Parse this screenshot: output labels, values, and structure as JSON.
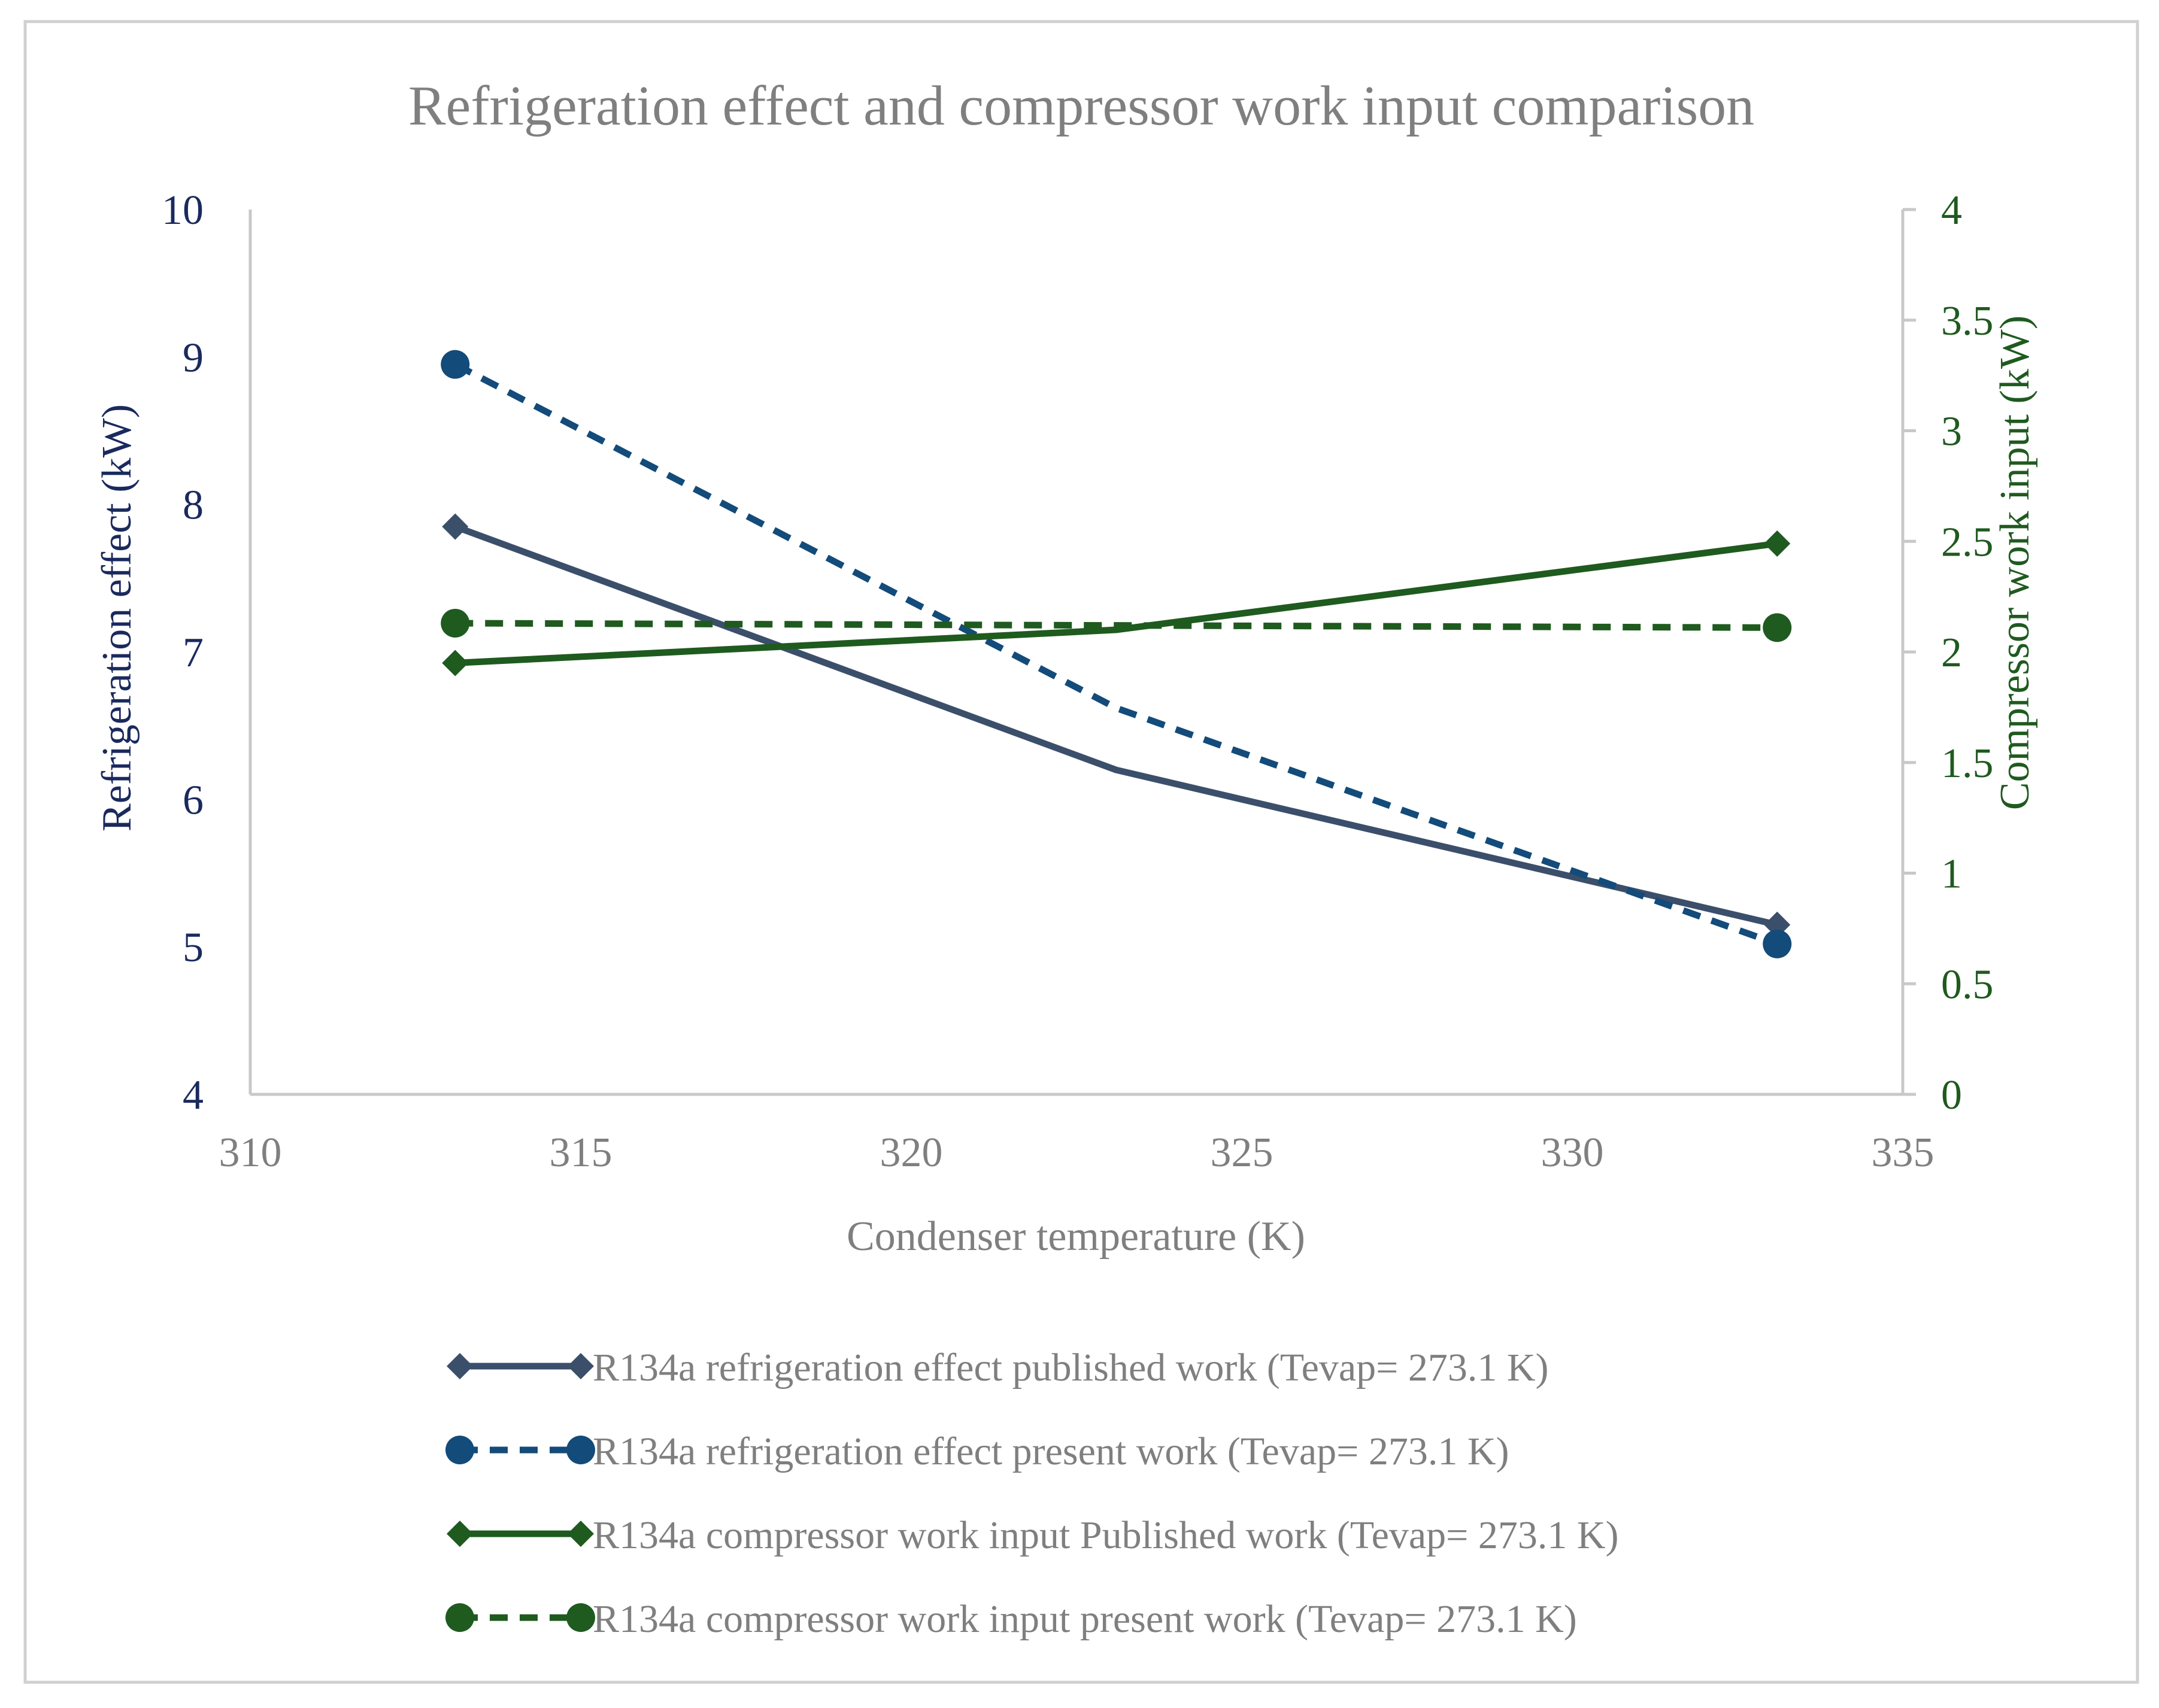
{
  "chart_data": {
    "type": "line",
    "title": "Refrigeration effect and compressor work input comparison",
    "xlabel": "Condenser temperature (K)",
    "ylabel_left": "Refrigeration effect (kW)",
    "ylabel_right": "Compressor work input (kW)",
    "xlim": [
      310,
      335
    ],
    "xticks": [
      310,
      315,
      320,
      325,
      330,
      335
    ],
    "ylim_left": [
      4,
      10
    ],
    "yticks_left": [
      4,
      5,
      6,
      7,
      8,
      9,
      10
    ],
    "ylim_right": [
      0,
      4
    ],
    "yticks_right": [
      "0",
      "0.5",
      "1",
      "1.5",
      "2",
      "2.5",
      "3",
      "3.5",
      "4"
    ],
    "grid": false,
    "legend_position": "bottom",
    "series": [
      {
        "name": "R134a refrigeration effect published work (Tevap= 273.1 K)",
        "axis": "left",
        "x": [
          313.1,
          323.1,
          333.1
        ],
        "y": [
          7.85,
          6.2,
          5.15
        ],
        "color": "#3b4f6b",
        "dash": "solid",
        "marker": "diamond",
        "marker_indices": [
          0,
          2
        ]
      },
      {
        "name": "R134a refrigeration effect present work (Tevap= 273.1 K)",
        "axis": "left",
        "x": [
          313.1,
          323.1,
          333.1
        ],
        "y": [
          8.95,
          6.62,
          5.02
        ],
        "color": "#134b7a",
        "dash": "dashed",
        "marker": "circle",
        "marker_indices": [
          0,
          2
        ]
      },
      {
        "name": "R134a compressor work input Published work (Tevap= 273.1 K)",
        "axis": "right",
        "x": [
          313.1,
          323.1,
          333.1
        ],
        "y": [
          1.95,
          2.1,
          2.49
        ],
        "color": "#1f5a1f",
        "dash": "solid",
        "marker": "diamond",
        "marker_indices": [
          0,
          2
        ]
      },
      {
        "name": "R134a compressor work input present work (Tevap= 273.1 K)",
        "axis": "right",
        "x": [
          313.1,
          323.1,
          333.1
        ],
        "y": [
          2.13,
          2.12,
          2.11
        ],
        "color": "#1f5a1f",
        "dash": "dashed",
        "marker": "circle",
        "marker_indices": [
          0,
          2
        ]
      }
    ],
    "colors": {
      "title": "#7f7f7f",
      "x_text": "#7f7f7f",
      "left_axis_text": "#1a2a5e",
      "right_axis_text": "#1f5a1f",
      "axis_line": "#c8c8c8",
      "border": "#d0d0d0"
    }
  }
}
